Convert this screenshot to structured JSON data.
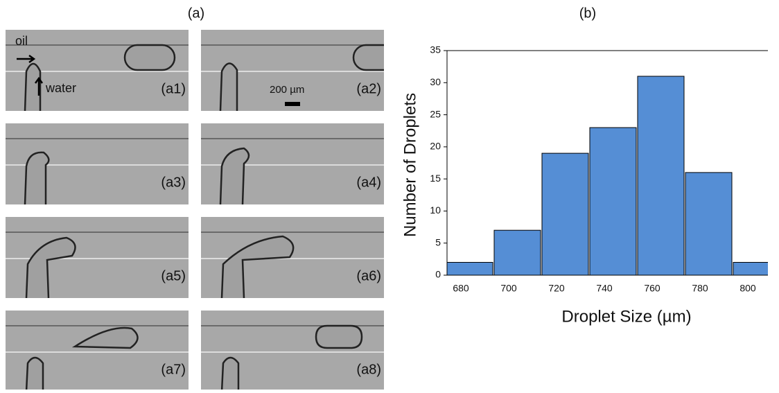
{
  "panel_a": {
    "title": "(a)",
    "oil_label": "oil",
    "water_label": "water",
    "scale_label": "200 µm",
    "frames": [
      "(a1)",
      "(a2)",
      "(a3)",
      "(a4)",
      "(a5)",
      "(a6)",
      "(a7)",
      "(a8)"
    ]
  },
  "chart_data": {
    "type": "bar",
    "panel_label": "(b)",
    "x_label": "Droplet Size (µm)",
    "y_label": "Number of Droplets",
    "categories": [
      "680",
      "700",
      "720",
      "740",
      "760",
      "780",
      "800"
    ],
    "values": [
      2,
      7,
      19,
      23,
      31,
      16,
      2
    ],
    "color": "#558ed5",
    "ylim": [
      0,
      35
    ],
    "yticks": [
      0,
      5,
      10,
      15,
      20,
      25,
      30,
      35
    ]
  }
}
